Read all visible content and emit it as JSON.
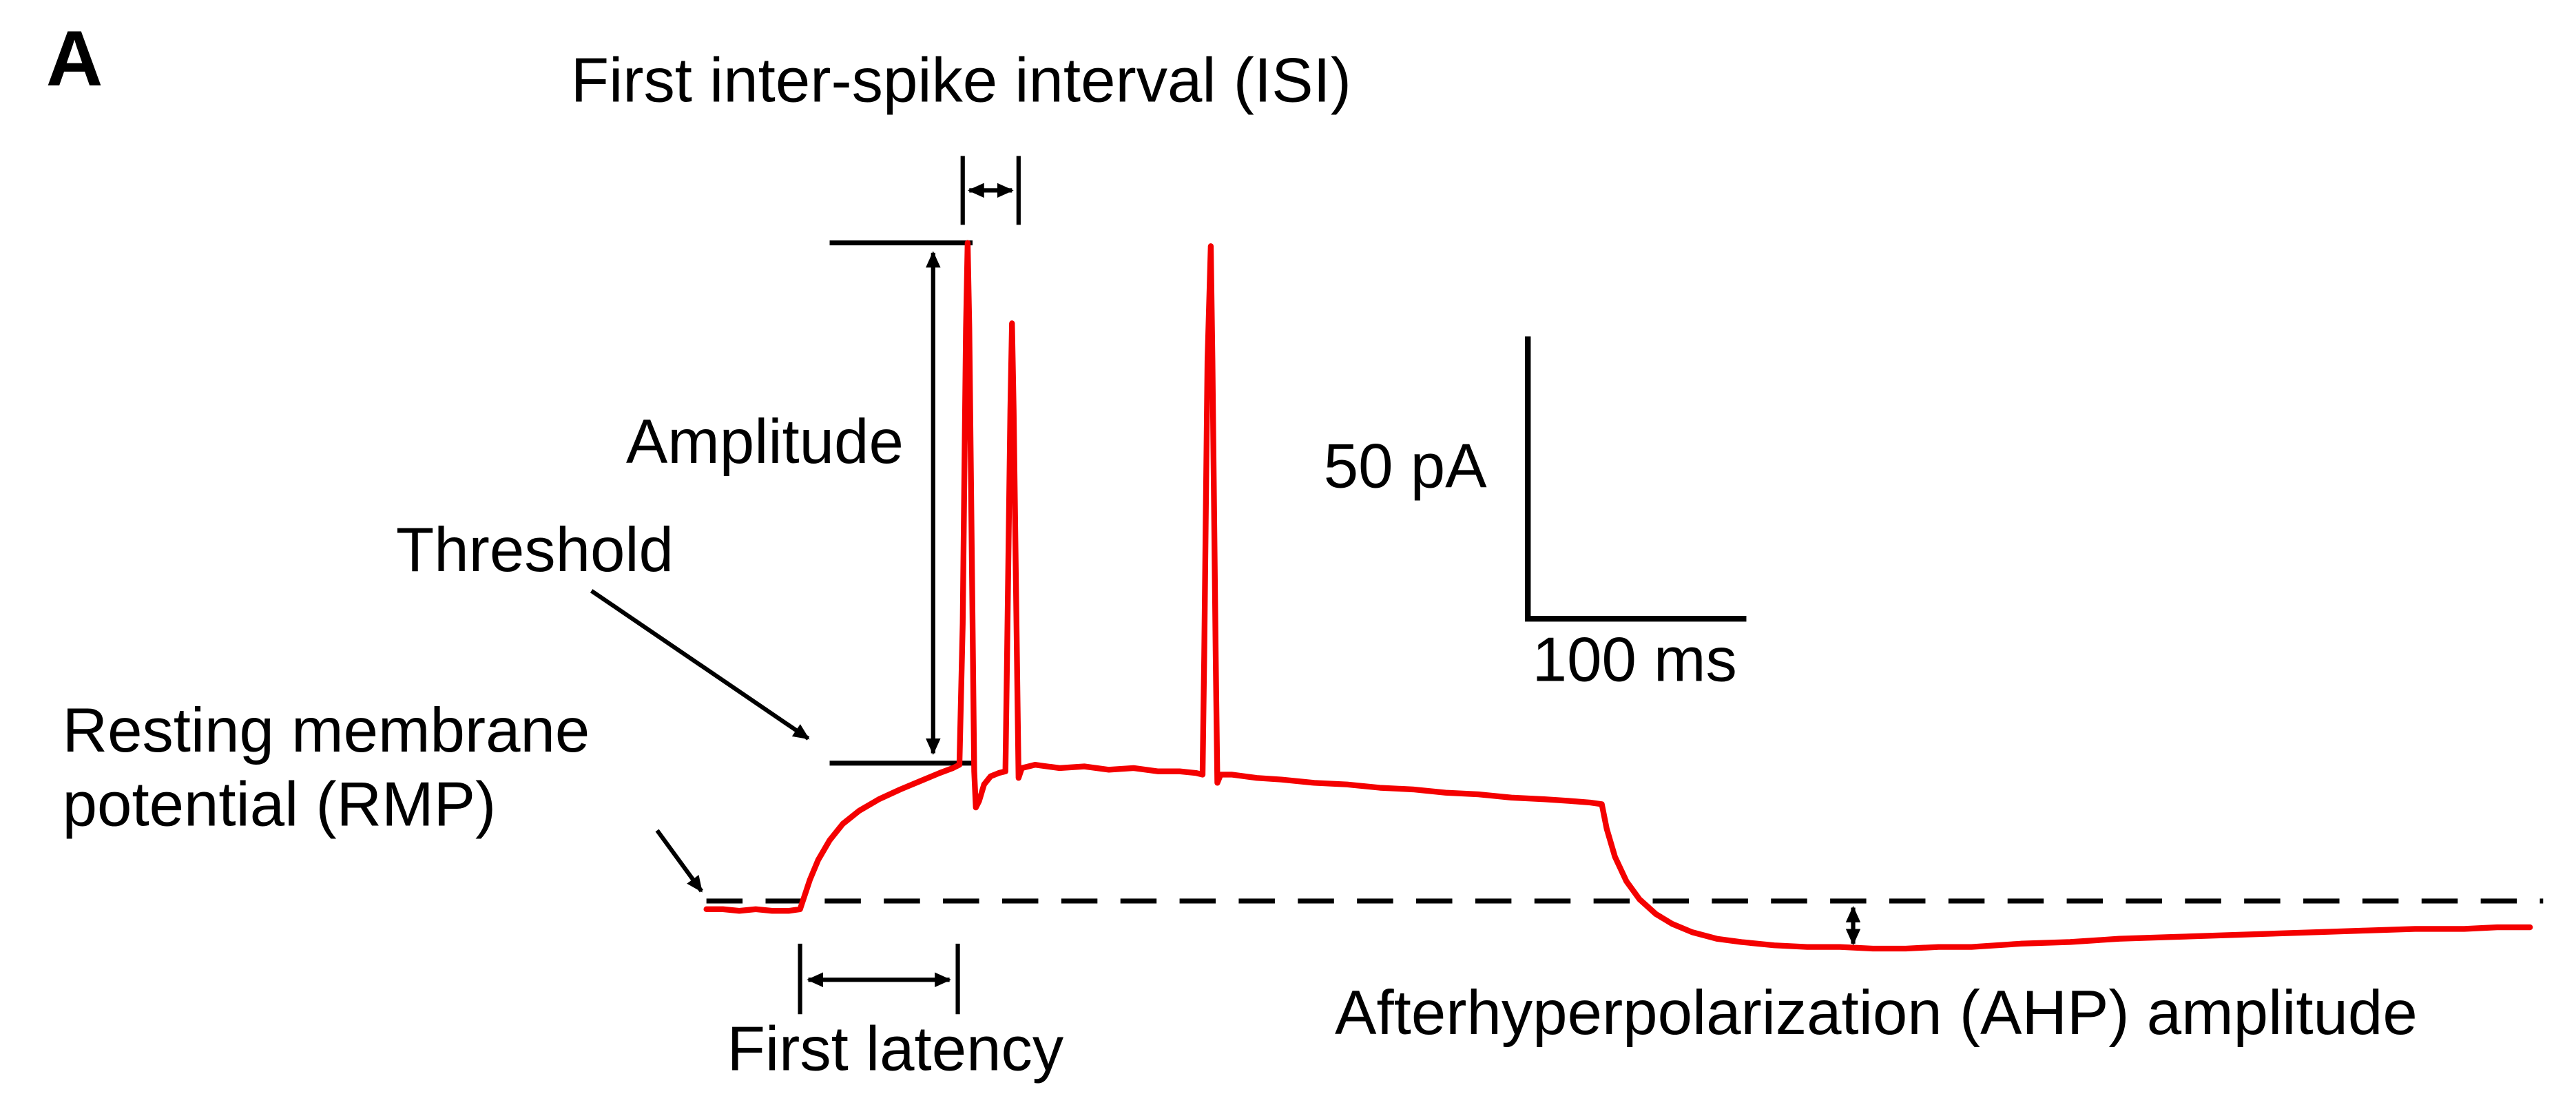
{
  "figure": {
    "panel_label": "A",
    "background_color": "#ffffff",
    "trace_color": "#f40000",
    "annotation_color": "#000000",
    "description": "Annotated current-clamp electrophysiology trace illustrating action potential parameters"
  },
  "labels": {
    "title": "First inter-spike interval (ISI)",
    "amplitude": "Amplitude",
    "threshold": "Threshold",
    "rmp_line1": "Resting membrane",
    "rmp_line2": "potential (RMP)",
    "first_latency": "First latency",
    "ahp": "Afterhyperpolarization (AHP) amplitude",
    "scale_vertical": "50 pA",
    "scale_horizontal": "100 ms"
  },
  "trace": {
    "type": "line",
    "series_name": "membrane potential trace",
    "features": {
      "spike_count": 3,
      "annotated_measures": [
        "First inter-spike interval (ISI)",
        "Amplitude",
        "Threshold",
        "Resting membrane potential (RMP)",
        "First latency",
        "Afterhyperpolarization (AHP) amplitude"
      ]
    },
    "points": [
      [
        430,
        554
      ],
      [
        440,
        554
      ],
      [
        450,
        555
      ],
      [
        460,
        554
      ],
      [
        470,
        555
      ],
      [
        480,
        555
      ],
      [
        487,
        554
      ],
      [
        489,
        548
      ],
      [
        493,
        536
      ],
      [
        498,
        524
      ],
      [
        505,
        512
      ],
      [
        513,
        502
      ],
      [
        523,
        494
      ],
      [
        535,
        487
      ],
      [
        548,
        481
      ],
      [
        560,
        476
      ],
      [
        572,
        471
      ],
      [
        580,
        468
      ],
      [
        584,
        466
      ],
      [
        586,
        380
      ],
      [
        588,
        200
      ],
      [
        589,
        148
      ],
      [
        590,
        200
      ],
      [
        592,
        380
      ],
      [
        593,
        470
      ],
      [
        594,
        492
      ],
      [
        596,
        488
      ],
      [
        599,
        478
      ],
      [
        603,
        473
      ],
      [
        608,
        471
      ],
      [
        612,
        470
      ],
      [
        613,
        400
      ],
      [
        615,
        250
      ],
      [
        616,
        197
      ],
      [
        617,
        250
      ],
      [
        619,
        400
      ],
      [
        620,
        474
      ],
      [
        622,
        468
      ],
      [
        630,
        466
      ],
      [
        645,
        468
      ],
      [
        660,
        467
      ],
      [
        675,
        469
      ],
      [
        690,
        468
      ],
      [
        705,
        470
      ],
      [
        718,
        470
      ],
      [
        728,
        471
      ],
      [
        732,
        472
      ],
      [
        733,
        400
      ],
      [
        735,
        220
      ],
      [
        737,
        150
      ],
      [
        738,
        220
      ],
      [
        740,
        400
      ],
      [
        741,
        477
      ],
      [
        743,
        472
      ],
      [
        750,
        472
      ],
      [
        765,
        474
      ],
      [
        780,
        475
      ],
      [
        800,
        477
      ],
      [
        820,
        478
      ],
      [
        840,
        480
      ],
      [
        860,
        481
      ],
      [
        880,
        483
      ],
      [
        900,
        484
      ],
      [
        920,
        486
      ],
      [
        940,
        487
      ],
      [
        955,
        488
      ],
      [
        968,
        489
      ],
      [
        975,
        490
      ],
      [
        978,
        505
      ],
      [
        983,
        522
      ],
      [
        990,
        537
      ],
      [
        998,
        548
      ],
      [
        1008,
        557
      ],
      [
        1018,
        563
      ],
      [
        1030,
        568
      ],
      [
        1045,
        572
      ],
      [
        1060,
        574
      ],
      [
        1080,
        576
      ],
      [
        1100,
        577
      ],
      [
        1120,
        577
      ],
      [
        1140,
        578
      ],
      [
        1160,
        578
      ],
      [
        1180,
        577
      ],
      [
        1200,
        577
      ],
      [
        1230,
        575
      ],
      [
        1260,
        574
      ],
      [
        1290,
        572
      ],
      [
        1320,
        571
      ],
      [
        1350,
        570
      ],
      [
        1380,
        569
      ],
      [
        1410,
        568
      ],
      [
        1440,
        567
      ],
      [
        1470,
        566
      ],
      [
        1500,
        566
      ],
      [
        1520,
        565
      ],
      [
        1540,
        565
      ]
    ]
  }
}
